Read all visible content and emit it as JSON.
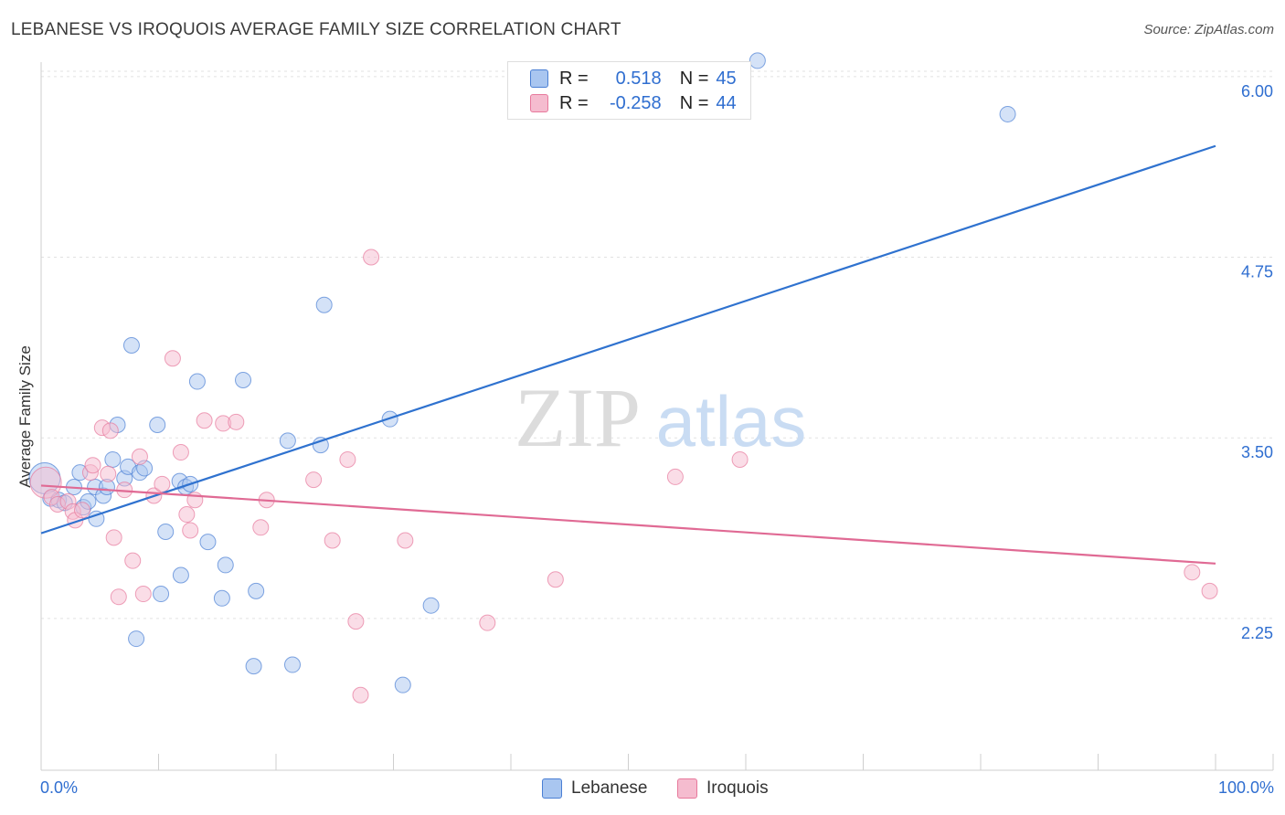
{
  "chart_data": {
    "type": "scatter",
    "title": "LEBANESE VS IROQUOIS AVERAGE FAMILY SIZE CORRELATION CHART",
    "source": "Source: ZipAtlas.com",
    "watermark": {
      "zip": "ZIP",
      "atlas": "atlas"
    },
    "xlabel": "",
    "ylabel": "Average Family Size",
    "xlim": [
      0,
      100
    ],
    "ylim": [
      1.2,
      6.1
    ],
    "y_ticks": [
      2.25,
      3.5,
      4.75,
      6.0
    ],
    "y_tick_labels": [
      "2.25",
      "3.50",
      "4.75",
      "6.00"
    ],
    "x_tick_labels": [
      "0.0%",
      "100.0%"
    ],
    "grid": true,
    "legend_position": "top-center",
    "series": [
      {
        "name": "Lebanese",
        "color": "#4a7fd4",
        "fill": "#a9c6f0",
        "line_color": "#2f72cf",
        "r_label": "R =",
        "r_value": "0.518",
        "n_label": "N =",
        "n_value": "45",
        "trend": {
          "x": [
            0,
            100
          ],
          "y": [
            2.84,
            5.52
          ]
        },
        "points": [
          {
            "x": 0.3,
            "y": 3.22,
            "big": true
          },
          {
            "x": 0.8,
            "y": 3.08
          },
          {
            "x": 1.5,
            "y": 3.07
          },
          {
            "x": 2.0,
            "y": 3.05
          },
          {
            "x": 2.8,
            "y": 3.16
          },
          {
            "x": 3.3,
            "y": 3.26
          },
          {
            "x": 3.6,
            "y": 3.02
          },
          {
            "x": 4.0,
            "y": 3.06
          },
          {
            "x": 4.6,
            "y": 3.16
          },
          {
            "x": 4.7,
            "y": 2.94
          },
          {
            "x": 5.3,
            "y": 3.1
          },
          {
            "x": 5.6,
            "y": 3.16
          },
          {
            "x": 6.1,
            "y": 3.35
          },
          {
            "x": 6.5,
            "y": 3.59
          },
          {
            "x": 7.1,
            "y": 3.22
          },
          {
            "x": 7.4,
            "y": 3.3
          },
          {
            "x": 7.7,
            "y": 4.14
          },
          {
            "x": 8.1,
            "y": 2.11
          },
          {
            "x": 8.4,
            "y": 3.26
          },
          {
            "x": 8.8,
            "y": 3.29
          },
          {
            "x": 9.9,
            "y": 3.59
          },
          {
            "x": 10.2,
            "y": 2.42
          },
          {
            "x": 10.6,
            "y": 2.85
          },
          {
            "x": 11.8,
            "y": 3.2
          },
          {
            "x": 11.9,
            "y": 2.55
          },
          {
            "x": 12.3,
            "y": 3.16
          },
          {
            "x": 12.7,
            "y": 3.18
          },
          {
            "x": 13.3,
            "y": 3.89
          },
          {
            "x": 14.2,
            "y": 2.78
          },
          {
            "x": 15.4,
            "y": 2.39
          },
          {
            "x": 15.7,
            "y": 2.62
          },
          {
            "x": 17.2,
            "y": 3.9
          },
          {
            "x": 18.1,
            "y": 1.92
          },
          {
            "x": 18.3,
            "y": 2.44
          },
          {
            "x": 21.0,
            "y": 3.48
          },
          {
            "x": 21.4,
            "y": 1.93
          },
          {
            "x": 23.8,
            "y": 3.45
          },
          {
            "x": 24.1,
            "y": 4.42
          },
          {
            "x": 29.7,
            "y": 3.63
          },
          {
            "x": 30.8,
            "y": 1.79
          },
          {
            "x": 33.2,
            "y": 2.34
          },
          {
            "x": 61.0,
            "y": 6.11
          },
          {
            "x": 82.3,
            "y": 5.74
          }
        ]
      },
      {
        "name": "Iroquois",
        "color": "#e7799c",
        "fill": "#f5bccf",
        "line_color": "#e06a94",
        "r_label": "R =",
        "r_value": "-0.258",
        "n_label": "N =",
        "n_value": "44",
        "trend": {
          "x": [
            0,
            100
          ],
          "y": [
            3.17,
            2.63
          ]
        },
        "points": [
          {
            "x": 0.4,
            "y": 3.19,
            "big": true
          },
          {
            "x": 0.9,
            "y": 3.09
          },
          {
            "x": 1.4,
            "y": 3.04
          },
          {
            "x": 2.3,
            "y": 3.06
          },
          {
            "x": 2.7,
            "y": 2.99
          },
          {
            "x": 2.9,
            "y": 2.93
          },
          {
            "x": 3.5,
            "y": 3.0
          },
          {
            "x": 4.2,
            "y": 3.26
          },
          {
            "x": 4.4,
            "y": 3.31
          },
          {
            "x": 5.2,
            "y": 3.57
          },
          {
            "x": 5.7,
            "y": 3.25
          },
          {
            "x": 5.9,
            "y": 3.55
          },
          {
            "x": 6.2,
            "y": 2.81
          },
          {
            "x": 6.6,
            "y": 2.4
          },
          {
            "x": 7.1,
            "y": 3.14
          },
          {
            "x": 7.8,
            "y": 2.65
          },
          {
            "x": 8.4,
            "y": 3.37
          },
          {
            "x": 8.7,
            "y": 2.42
          },
          {
            "x": 9.6,
            "y": 3.1
          },
          {
            "x": 10.3,
            "y": 3.18
          },
          {
            "x": 11.2,
            "y": 4.05
          },
          {
            "x": 11.9,
            "y": 3.4
          },
          {
            "x": 12.4,
            "y": 2.97
          },
          {
            "x": 12.7,
            "y": 2.86
          },
          {
            "x": 13.1,
            "y": 3.07
          },
          {
            "x": 13.9,
            "y": 3.62
          },
          {
            "x": 15.5,
            "y": 3.6
          },
          {
            "x": 16.6,
            "y": 3.61
          },
          {
            "x": 18.7,
            "y": 2.88
          },
          {
            "x": 19.2,
            "y": 3.07
          },
          {
            "x": 23.2,
            "y": 3.21
          },
          {
            "x": 24.8,
            "y": 2.79
          },
          {
            "x": 26.1,
            "y": 3.35
          },
          {
            "x": 26.8,
            "y": 2.23
          },
          {
            "x": 27.2,
            "y": 1.72
          },
          {
            "x": 28.1,
            "y": 4.75
          },
          {
            "x": 31.0,
            "y": 2.79
          },
          {
            "x": 38.0,
            "y": 2.22
          },
          {
            "x": 43.8,
            "y": 2.52
          },
          {
            "x": 54.0,
            "y": 3.23
          },
          {
            "x": 59.5,
            "y": 3.35
          },
          {
            "x": 98.0,
            "y": 2.57
          },
          {
            "x": 99.5,
            "y": 2.44
          }
        ]
      }
    ]
  }
}
